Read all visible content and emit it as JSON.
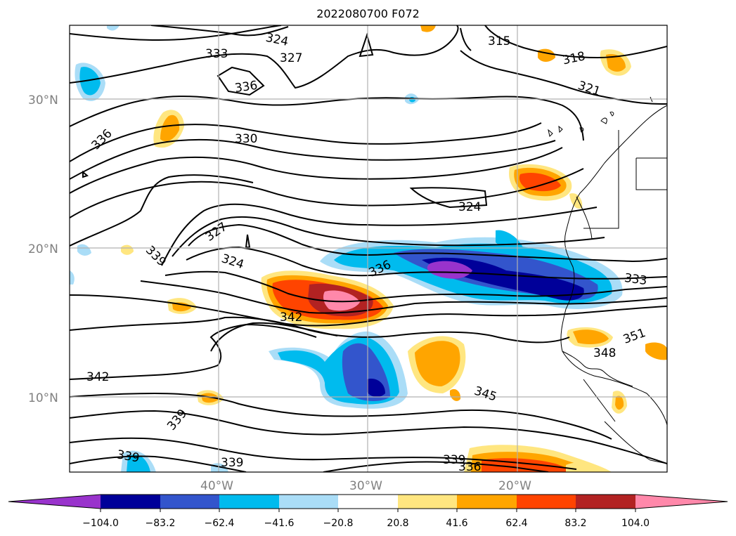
{
  "title": "2022080700 F072",
  "map": {
    "lat_ticks": [
      "30°N",
      "20°N",
      "10°N"
    ],
    "lon_ticks": [
      "40°W",
      "30°W",
      "20°W"
    ]
  },
  "colorbar": {
    "colors": [
      "#9933cc",
      "#000099",
      "#3355cc",
      "#00bbee",
      "#aaddf7",
      "#ffffff",
      "#ffe680",
      "#ffa500",
      "#ff4400",
      "#b22222",
      "#ff88aa"
    ],
    "labels": [
      "−104.0",
      "−83.2",
      "−62.4",
      "−41.6",
      "−20.8",
      "20.8",
      "41.6",
      "62.4",
      "83.2",
      "104.0"
    ]
  },
  "contour_labels": [
    "324",
    "327",
    "333",
    "336",
    "330",
    "336",
    "327",
    "324",
    "339",
    "342",
    "336",
    "324",
    "315",
    "318",
    "321",
    "333",
    "351",
    "348",
    "345",
    "342",
    "339",
    "339",
    "339",
    "339",
    "336"
  ]
}
